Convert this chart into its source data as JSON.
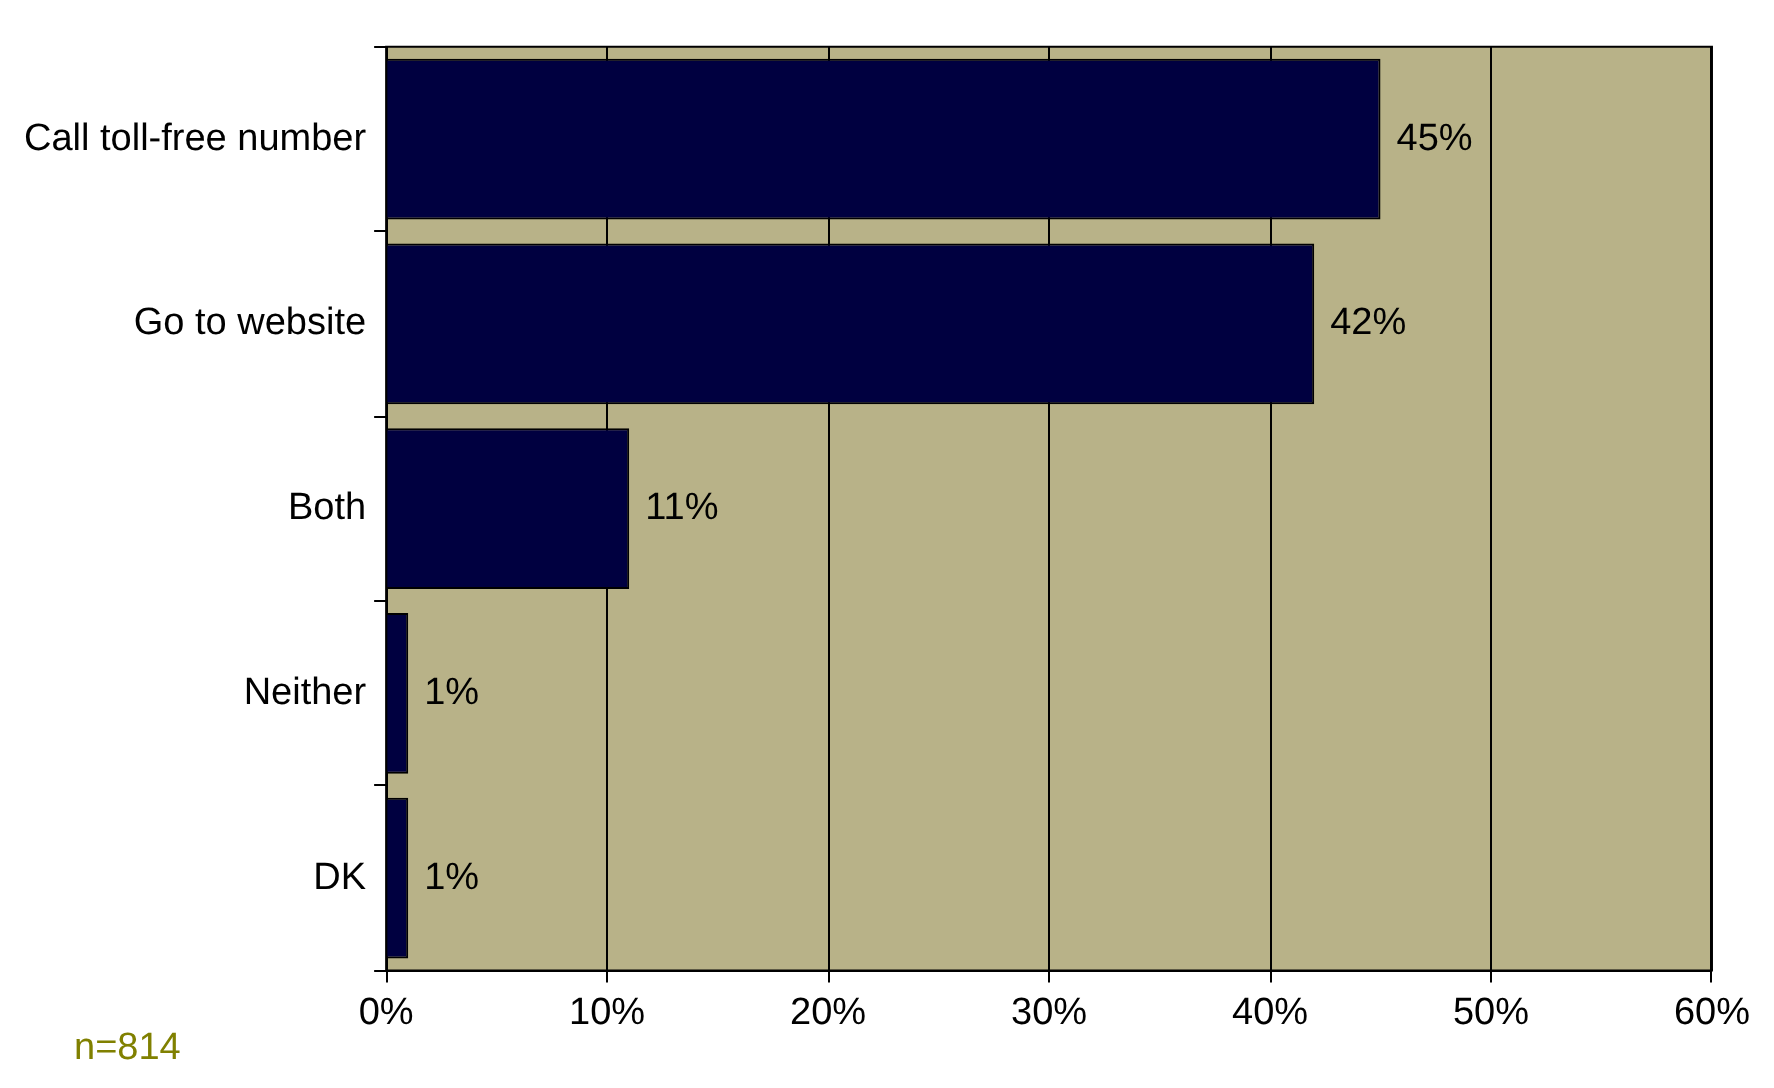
{
  "chart_data": {
    "type": "bar",
    "orientation": "horizontal",
    "categories": [
      "Call toll-free number",
      "Go to website",
      "Both",
      "Neither",
      "DK"
    ],
    "values": [
      45,
      42,
      11,
      1,
      1
    ],
    "value_labels": [
      "45%",
      "42%",
      "11%",
      "1%",
      "1%"
    ],
    "color": "#000040",
    "xlim": [
      0,
      60
    ],
    "xticks": [
      {
        "value": 0,
        "label": "0%"
      },
      {
        "value": 10,
        "label": "10%"
      },
      {
        "value": 20,
        "label": "20%"
      },
      {
        "value": 30,
        "label": "30%"
      },
      {
        "value": 40,
        "label": "40%"
      },
      {
        "value": 50,
        "label": "50%"
      },
      {
        "value": 60,
        "label": "60%"
      }
    ],
    "grid": "x",
    "legend": false,
    "annotations": [
      "n=814"
    ]
  }
}
